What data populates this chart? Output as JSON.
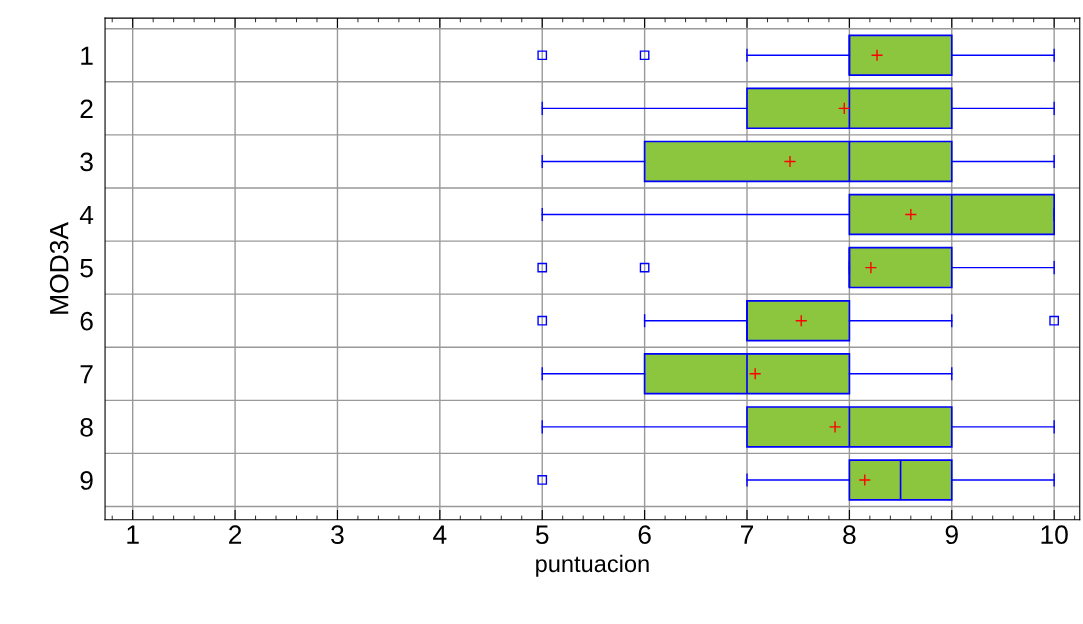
{
  "chart_data": {
    "type": "box",
    "orientation": "horizontal",
    "xlabel": "puntuacion",
    "ylabel": "MOD3A",
    "categories": [
      "1",
      "2",
      "3",
      "4",
      "5",
      "6",
      "7",
      "8",
      "9"
    ],
    "series": [
      {
        "color": "#8cc63f",
        "boxes": [
          {
            "low": 7,
            "q1": 8,
            "median": 8,
            "q3": 9,
            "high": 10,
            "mean": 8.27,
            "outliers": [
              5,
              6
            ]
          },
          {
            "low": 5,
            "q1": 7,
            "median": 8,
            "q3": 9,
            "high": 10,
            "mean": 7.95
          },
          {
            "low": 5,
            "q1": 6,
            "median": 8,
            "q3": 9,
            "high": 10,
            "mean": 7.42
          },
          {
            "low": 5,
            "q1": 8,
            "median": 9,
            "q3": 10,
            "high": 10,
            "mean": 8.6
          },
          {
            "low": 8,
            "q1": 8,
            "median": 8,
            "q3": 9,
            "high": 10,
            "mean": 8.21,
            "outliers": [
              5,
              6
            ]
          },
          {
            "low": 6,
            "q1": 7,
            "median": 7,
            "q3": 8,
            "high": 9,
            "mean": 7.53,
            "outliers": [
              5,
              10
            ]
          },
          {
            "low": 5,
            "q1": 6,
            "median": 7,
            "q3": 8,
            "high": 9,
            "mean": 7.08
          },
          {
            "low": 5,
            "q1": 7,
            "median": 8,
            "q3": 9,
            "high": 10,
            "mean": 7.86
          },
          {
            "low": 7,
            "q1": 8,
            "median": 8.5,
            "q3": 9,
            "high": 10,
            "mean": 8.15,
            "outliers": [
              5
            ]
          }
        ]
      }
    ],
    "xlim": [
      0.73,
      10.25
    ],
    "xticks": [
      1,
      2,
      3,
      4,
      5,
      6,
      7,
      8,
      9,
      10
    ],
    "grid": true
  }
}
